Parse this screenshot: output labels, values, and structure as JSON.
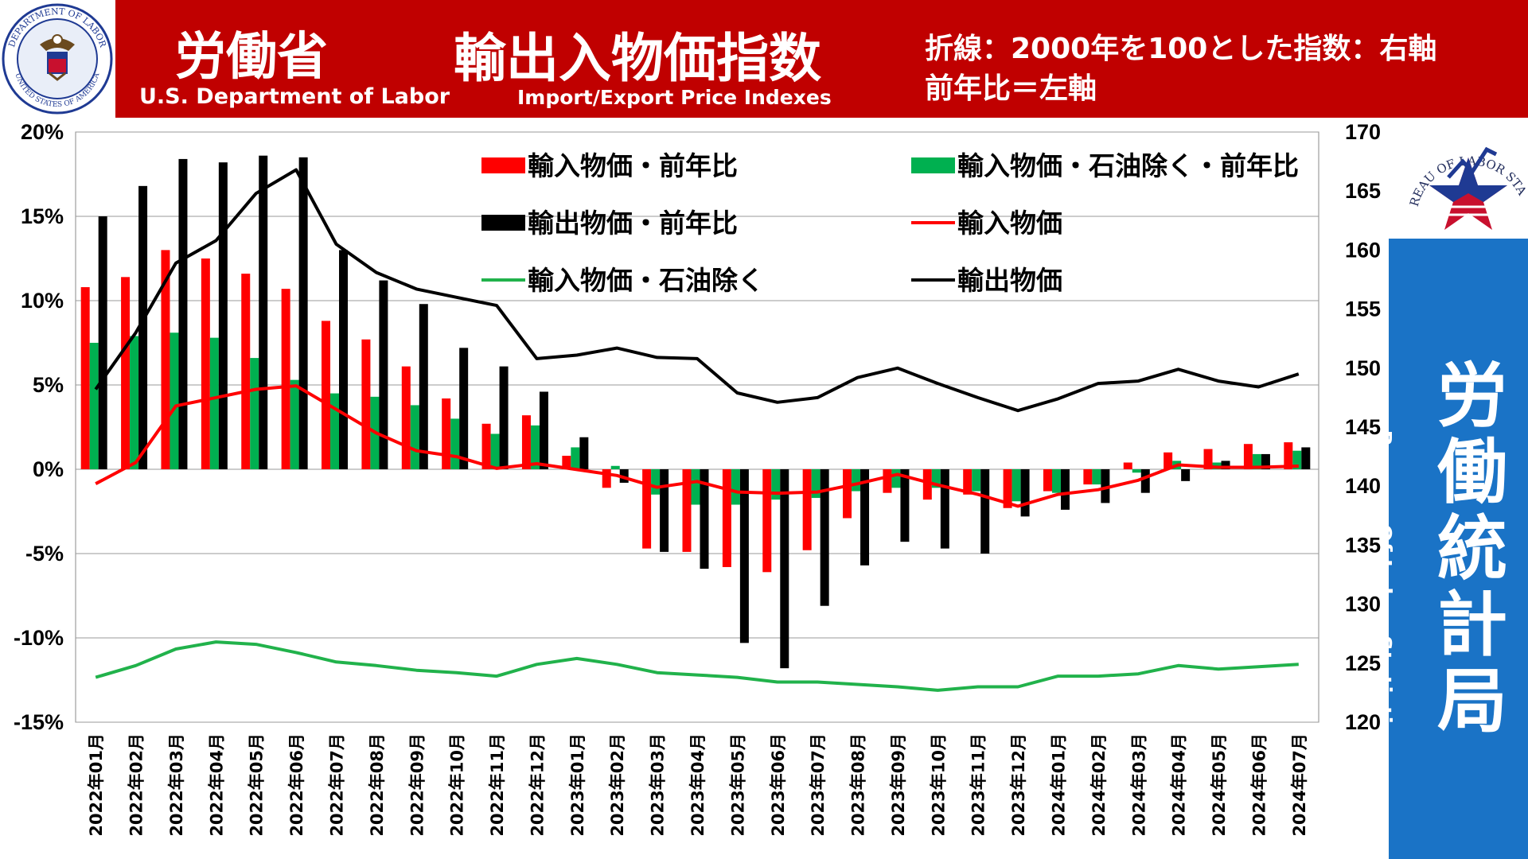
{
  "header": {
    "ministry_ja": "労働省",
    "ministry_en": "U.S. Department of Labor",
    "title_ja": "輸出入物価指数",
    "title_en": "Import/Export Price Indexes",
    "note_line1": "折線：2000年を100とした指数：右軸",
    "note_line2": "前年比＝左軸"
  },
  "seal": {
    "text_top": "DEPARTMENT OF LABOR",
    "text_bottom": "UNITED STATES OF AMERICA"
  },
  "bls": {
    "logo_text": "U.S. BUREAU OF LABOR STATISTICS",
    "name_ja_chars": [
      "労",
      "働",
      "統",
      "計",
      "局"
    ],
    "name_en": "Bureau Of Labor Statistics"
  },
  "colors": {
    "import_yoy": "#ff0000",
    "import_ex_oil_yoy": "#00b050",
    "export_yoy": "#000000",
    "import_index": "#ff0000",
    "import_ex_oil_index": "#21b24b",
    "export_index": "#000000",
    "header_red": "#c00000",
    "bls_blue": "#1a73c6"
  },
  "chart_data": {
    "type": "bar+line",
    "categories": [
      "2022年01月",
      "2022年02月",
      "2022年03月",
      "2022年04月",
      "2022年05月",
      "2022年06月",
      "2022年07月",
      "2022年08月",
      "2022年09月",
      "2022年10月",
      "2022年11月",
      "2022年12月",
      "2023年01月",
      "2023年02月",
      "2023年03月",
      "2023年04月",
      "2023年05月",
      "2023年06月",
      "2023年07月",
      "2023年08月",
      "2023年09月",
      "2023年10月",
      "2023年11月",
      "2023年12月",
      "2024年01月",
      "2024年02月",
      "2024年03月",
      "2024年04月",
      "2024年05月",
      "2024年06月",
      "2024年07月"
    ],
    "left_axis": {
      "min": -15,
      "max": 20,
      "step": 5,
      "tick_labels": [
        "-15%",
        "-10%",
        "-5%",
        "0%",
        "5%",
        "10%",
        "15%",
        "20%"
      ]
    },
    "right_axis": {
      "min": 120,
      "max": 170,
      "step": 5,
      "tick_labels": [
        "120",
        "125",
        "130",
        "135",
        "140",
        "145",
        "150",
        "155",
        "160",
        "165",
        "170"
      ]
    },
    "bar_series": [
      {
        "name": "輸入物価・前年比",
        "color": "#ff0000",
        "values": [
          10.8,
          11.4,
          13.0,
          12.5,
          11.6,
          10.7,
          8.8,
          7.7,
          6.1,
          4.2,
          2.7,
          3.2,
          0.8,
          -1.1,
          -4.7,
          -4.9,
          -5.8,
          -6.1,
          -4.8,
          -2.9,
          -1.4,
          -1.8,
          -1.5,
          -2.3,
          -1.3,
          -0.9,
          0.4,
          1.0,
          1.2,
          1.5,
          1.6
        ]
      },
      {
        "name": "輸入物価・石油除く・前年比",
        "color": "#00b050",
        "values": [
          7.5,
          7.9,
          8.1,
          7.8,
          6.6,
          5.3,
          4.5,
          4.3,
          3.8,
          3.0,
          2.1,
          2.6,
          1.3,
          0.2,
          -1.5,
          -2.1,
          -2.1,
          -1.8,
          -1.7,
          -1.3,
          -1.1,
          -1.1,
          -1.3,
          -1.9,
          -1.4,
          -0.9,
          -0.2,
          0.5,
          0.4,
          0.9,
          1.1
        ]
      },
      {
        "name": "輸出物価・前年比",
        "color": "#000000",
        "values": [
          15.0,
          16.8,
          18.4,
          18.2,
          18.6,
          18.5,
          13.0,
          11.2,
          9.8,
          7.2,
          6.1,
          4.6,
          1.9,
          -0.8,
          -4.9,
          -5.9,
          -10.3,
          -11.8,
          -8.1,
          -5.7,
          -4.3,
          -4.7,
          -5.0,
          -2.8,
          -2.4,
          -2.0,
          -1.4,
          -0.7,
          0.5,
          0.9,
          1.3
        ]
      }
    ],
    "line_series": [
      {
        "name": "輸入物価",
        "color": "#ff0000",
        "values": [
          140.2,
          142.0,
          146.8,
          147.5,
          148.2,
          148.5,
          146.5,
          144.5,
          143.0,
          142.5,
          141.5,
          141.9,
          141.4,
          140.9,
          139.9,
          140.4,
          139.5,
          139.4,
          139.5,
          140.2,
          141.0,
          140.1,
          139.3,
          138.3,
          139.3,
          139.7,
          140.5,
          141.8,
          141.6,
          141.6,
          141.7
        ]
      },
      {
        "name": "輸入物価・石油除く",
        "color": "#21b24b",
        "values": [
          123.8,
          124.8,
          126.2,
          126.8,
          126.6,
          125.9,
          125.1,
          124.8,
          124.4,
          124.2,
          123.9,
          124.9,
          125.4,
          124.9,
          124.2,
          124.0,
          123.8,
          123.4,
          123.4,
          123.2,
          123.0,
          122.7,
          123.0,
          123.0,
          123.9,
          123.9,
          124.1,
          124.8,
          124.5,
          124.7,
          124.9
        ]
      },
      {
        "name": "輸出物価",
        "color": "#000000",
        "values": [
          148.2,
          153.0,
          158.9,
          160.8,
          164.8,
          166.8,
          160.5,
          158.1,
          156.7,
          156.0,
          155.3,
          150.8,
          151.1,
          151.7,
          150.9,
          150.8,
          147.9,
          147.1,
          147.5,
          149.2,
          150.0,
          148.7,
          147.5,
          146.4,
          147.4,
          148.7,
          148.9,
          149.9,
          148.9,
          148.4,
          149.5
        ]
      }
    ]
  }
}
